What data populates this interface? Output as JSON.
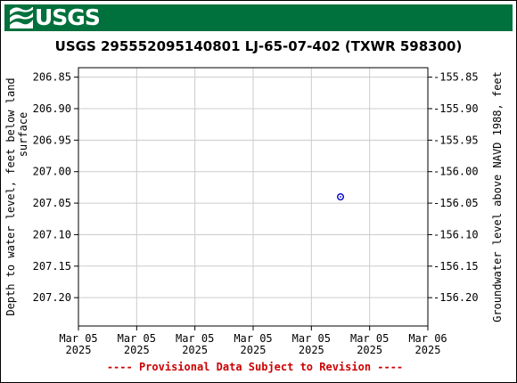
{
  "banner": {
    "logo_text": "USGS",
    "color": "#00703c"
  },
  "chart_data": {
    "type": "scatter",
    "title": "USGS 295552095140801 LJ-65-07-402 (TXWR 598300)",
    "ylabel_left_lines": [
      "Depth to water level, feet below land",
      "surface"
    ],
    "ylabel_right": "Groundwater level above NAVD 1988, feet",
    "footer": "---- Provisional Data Subject to Revision ----",
    "footer_color": "#cc0000",
    "grid": true,
    "left_axis": {
      "inverted": true,
      "ylim": [
        206.835,
        207.245
      ],
      "ticks": [
        206.85,
        206.9,
        206.95,
        207.0,
        207.05,
        207.1,
        207.15,
        207.2
      ],
      "tick_labels": [
        "206.85",
        "206.90",
        "206.95",
        "207.00",
        "207.05",
        "207.10",
        "207.15",
        "207.20"
      ]
    },
    "right_axis": {
      "ticks": [
        -155.85,
        -155.9,
        -155.95,
        -156.0,
        -156.05,
        -156.1,
        -156.15,
        -156.2
      ],
      "tick_labels": [
        "-155.85",
        "-155.90",
        "-155.95",
        "-156.00",
        "-156.05",
        "-156.10",
        "-156.15",
        "-156.20"
      ]
    },
    "x_axis": {
      "ticks": [
        0,
        4,
        8,
        12,
        16,
        20,
        24
      ],
      "tick_labels": [
        [
          "Mar 05",
          "2025"
        ],
        [
          "Mar 05",
          "2025"
        ],
        [
          "Mar 05",
          "2025"
        ],
        [
          "Mar 05",
          "2025"
        ],
        [
          "Mar 05",
          "2025"
        ],
        [
          "Mar 05",
          "2025"
        ],
        [
          "Mar 06",
          "2025"
        ]
      ],
      "range": [
        0,
        24
      ],
      "unit": "hours from Mar 05 2025 00:00"
    },
    "series": [
      {
        "points": [
          {
            "x": 18,
            "y": 207.04
          }
        ],
        "color": "#0000cc",
        "marker": "circle-dot"
      }
    ]
  }
}
